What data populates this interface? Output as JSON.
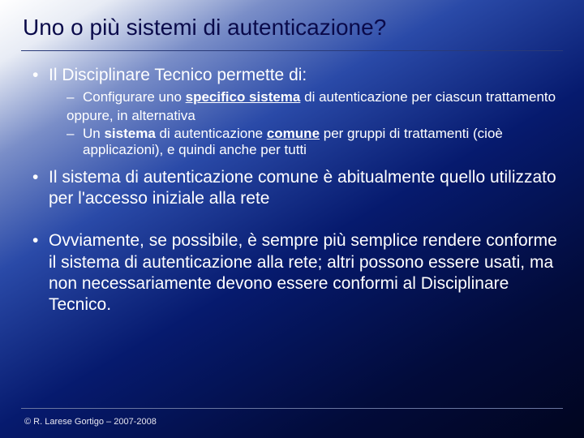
{
  "title": "Uno o più sistemi di autenticazione?",
  "bullets": {
    "b1": "Il Disciplinare Tecnico permette di:",
    "b1_sub1_pre": "Configurare uno ",
    "b1_sub1_bold": "specifico sistema",
    "b1_sub1_post": " di autenticazione per ciascun trattamento",
    "b1_alt": "oppure, in alternativa",
    "b1_sub2_pre": "Un ",
    "b1_sub2_bold1": "sistema",
    "b1_sub2_mid": " di autenticazione ",
    "b1_sub2_bold2": "comune",
    "b1_sub2_post": " per gruppi di trattamenti (cioè applicazioni), e quindi anche per tutti",
    "b2": "Il sistema di autenticazione comune è abitualmente quello utilizzato per l'accesso iniziale alla rete",
    "b3": "Ovviamente, se possibile, è sempre più semplice rendere conforme il sistema di autenticazione alla rete; altri possono essere usati, ma non necessariamente devono essere conformi al Disciplinare Tecnico."
  },
  "footer": "© R. Larese Gortigo – 2007-2008"
}
